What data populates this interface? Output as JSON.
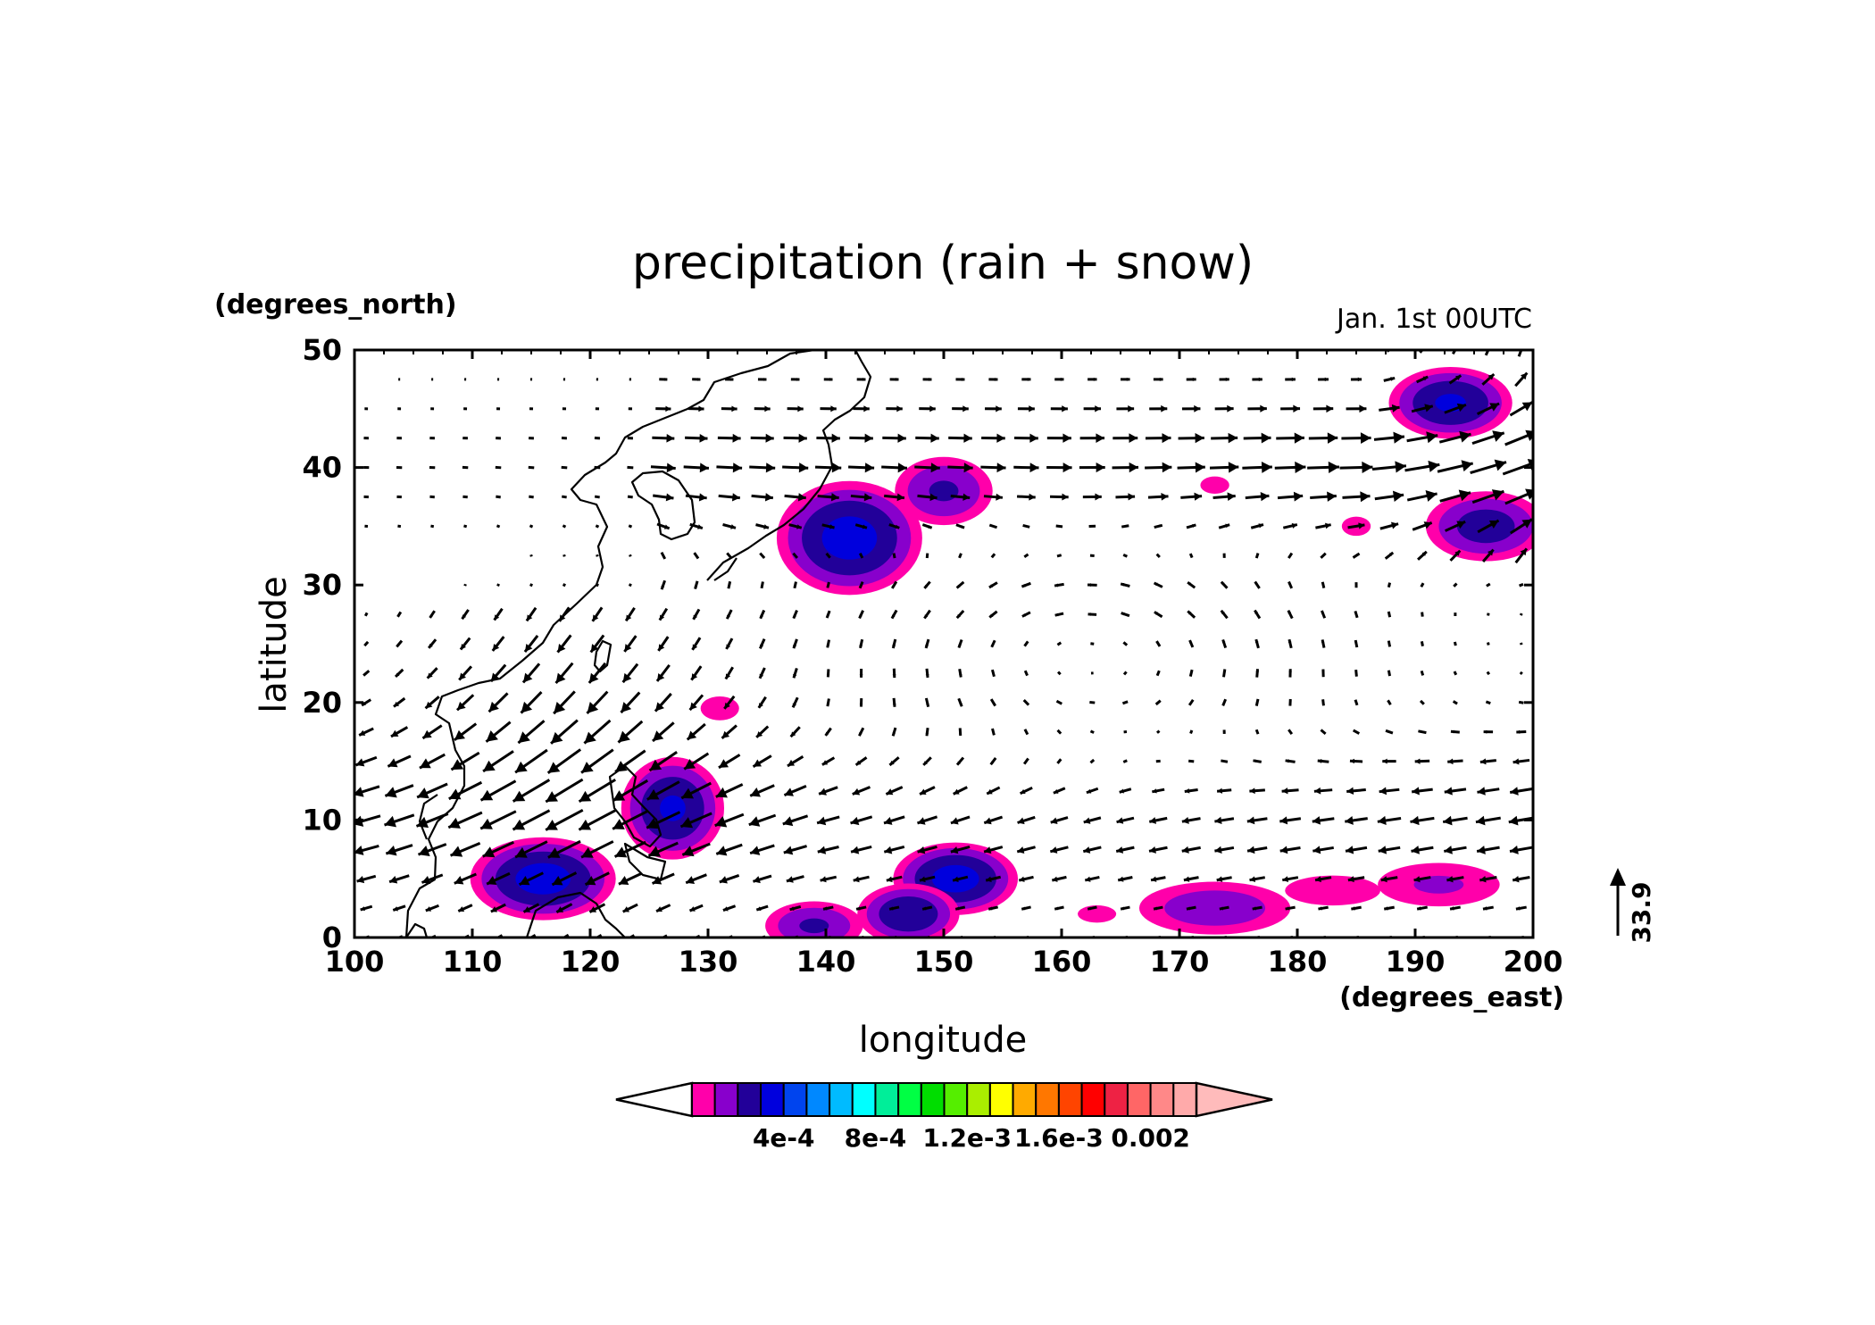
{
  "chart_data": {
    "type": "heatmap",
    "title": "precipitation (rain + snow)",
    "time_label": "Jan. 1st 00UTC",
    "xlabel": "longitude",
    "ylabel": "latitude",
    "x_units": "(degrees_east)",
    "y_units": "(degrees_north)",
    "xlim": [
      100,
      200
    ],
    "ylim": [
      0,
      50
    ],
    "x_ticks": [
      "100",
      "110",
      "120",
      "130",
      "140",
      "150",
      "160",
      "170",
      "180",
      "190",
      "200"
    ],
    "y_ticks": [
      "0",
      "10",
      "20",
      "30",
      "40",
      "50"
    ],
    "x_tick_values": [
      100,
      110,
      120,
      130,
      140,
      150,
      160,
      170,
      180,
      190,
      200
    ],
    "y_tick_values": [
      0,
      10,
      20,
      30,
      40,
      50
    ],
    "vector_reference": {
      "value": "33.9"
    },
    "colorbar": {
      "colors": [
        "#ff00aa",
        "#8800cc",
        "#220099",
        "#0000dd",
        "#0044ee",
        "#0088ff",
        "#00bbff",
        "#00ffff",
        "#00ee99",
        "#00ff44",
        "#00dd00",
        "#55ee00",
        "#aaee00",
        "#ffff00",
        "#ffaa00",
        "#ff7700",
        "#ff4400",
        "#ff0000",
        "#ee2244",
        "#ff6666",
        "#ff8888",
        "#ffaaaa"
      ],
      "under_color": "#ffffff",
      "over_color": "#ffbbbb",
      "labels": [
        "4e-4",
        "8e-4",
        "1.2e-3",
        "1.6e-3",
        "0.002"
      ],
      "label_values": [
        0.0004,
        0.0008,
        0.0012,
        0.0016,
        0.002
      ],
      "levels_start": 0.0001,
      "levels_step": 0.0001
    },
    "precip_blobs": [
      {
        "lon": 142,
        "lat": 34,
        "rx": 7,
        "ry": 5.5,
        "peak": 0.00045
      },
      {
        "lon": 150,
        "lat": 38,
        "rx": 5,
        "ry": 3.5,
        "peak": 0.00032
      },
      {
        "lon": 116,
        "lat": 5,
        "rx": 7,
        "ry": 4,
        "peak": 0.00045
      },
      {
        "lon": 127,
        "lat": 11,
        "rx": 5,
        "ry": 5,
        "peak": 0.00042
      },
      {
        "lon": 131,
        "lat": 19.5,
        "rx": 4,
        "ry": 2.5,
        "peak": 0.00012
      },
      {
        "lon": 151,
        "lat": 5,
        "rx": 6,
        "ry": 3.5,
        "peak": 0.00045
      },
      {
        "lon": 147,
        "lat": 2,
        "rx": 5,
        "ry": 3,
        "peak": 0.0004
      },
      {
        "lon": 139,
        "lat": 1,
        "rx": 5,
        "ry": 2.5,
        "peak": 0.00032
      },
      {
        "lon": 193,
        "lat": 45.5,
        "rx": 6,
        "ry": 3.5,
        "peak": 0.00042
      },
      {
        "lon": 196,
        "lat": 35,
        "rx": 6,
        "ry": 3.5,
        "peak": 0.00036
      },
      {
        "lon": 185,
        "lat": 35,
        "rx": 3,
        "ry": 2,
        "peak": 0.00012
      },
      {
        "lon": 173,
        "lat": 38.5,
        "rx": 3,
        "ry": 1.8,
        "peak": 0.00012
      },
      {
        "lon": 173,
        "lat": 2.5,
        "rx": 8,
        "ry": 2.8,
        "peak": 0.00028
      },
      {
        "lon": 192,
        "lat": 4.5,
        "rx": 7,
        "ry": 2.5,
        "peak": 0.00022
      },
      {
        "lon": 183,
        "lat": 4,
        "rx": 7,
        "ry": 2.2,
        "peak": 0.00015
      },
      {
        "lon": 163,
        "lat": 2,
        "rx": 4,
        "ry": 1.8,
        "peak": 0.00012
      }
    ]
  }
}
